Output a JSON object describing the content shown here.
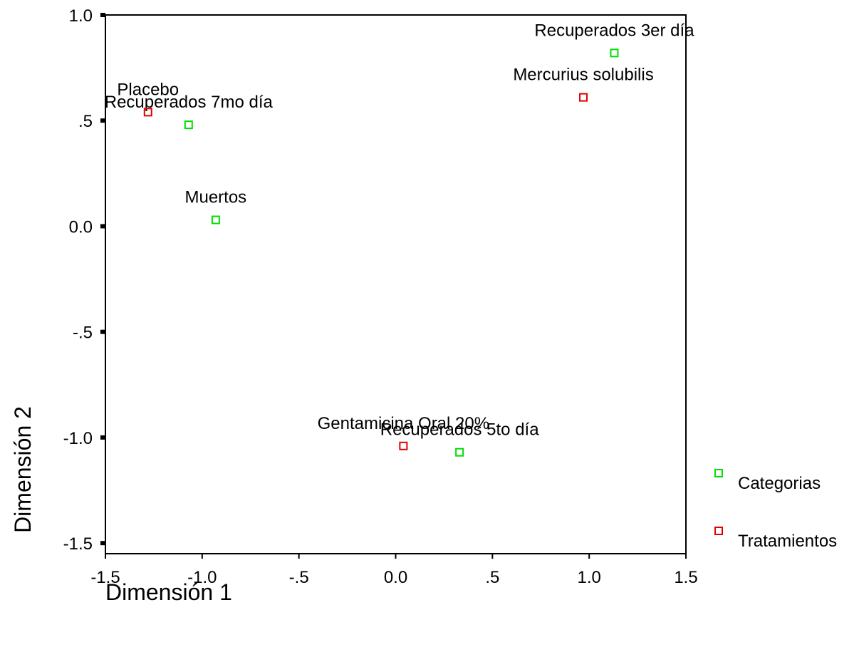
{
  "chart_data": {
    "type": "scatter",
    "title": "",
    "xlabel": "Dimensión 1",
    "ylabel": "Dimensión 2",
    "xlim": [
      -1.5,
      1.5
    ],
    "ylim": [
      -1.5,
      1.0
    ],
    "x_ticks": [
      "-1.5",
      "-1.0",
      "-.5",
      "0.0",
      ".5",
      "1.0",
      "1.5"
    ],
    "y_ticks": [
      "1.0",
      ".5",
      "0.0",
      "-.5",
      "-1.0",
      "-1.5"
    ],
    "legend_position": "right",
    "series": [
      {
        "name": "Categorias",
        "color": "#00dd00",
        "marker": "hollow-square",
        "points": [
          {
            "label": "Recuperados 3er día",
            "x": 1.13,
            "y": 0.82
          },
          {
            "label": "Recuperados 7mo día",
            "x": -1.07,
            "y": 0.48
          },
          {
            "label": "Muertos",
            "x": -0.93,
            "y": 0.03
          },
          {
            "label": "Recuperados 5to día",
            "x": 0.33,
            "y": -1.07
          }
        ]
      },
      {
        "name": "Tratamientos",
        "color": "#dd0000",
        "marker": "hollow-square",
        "points": [
          {
            "label": "Mercurius solubilis",
            "x": 0.97,
            "y": 0.61
          },
          {
            "label": "Placebo",
            "x": -1.28,
            "y": 0.54
          },
          {
            "label": "Gentamicina Oral 20%",
            "x": 0.04,
            "y": -1.04
          }
        ]
      }
    ]
  }
}
